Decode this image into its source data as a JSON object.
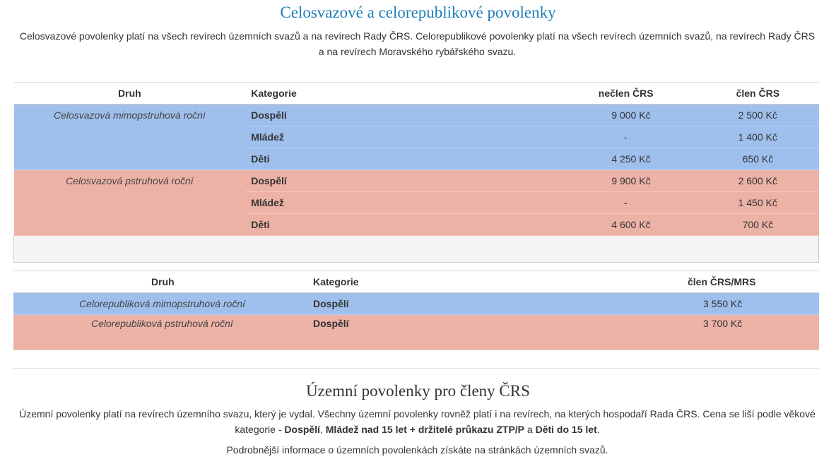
{
  "section1": {
    "title": "Celosvazové a celorepublikové povolenky",
    "intro_line1": "Celosvazové povolenky platí na všech revírech územních svazů a na revírech Rady ČRS. Celorepublikové povolenky platí na všech revírech územních svazů, na revírech Rady ČRS",
    "intro_line2": "a na revírech Moravského rybářského svazu."
  },
  "table1": {
    "headers": [
      "Druh",
      "Kategorie",
      "nečlen ČRS",
      "člen ČRS"
    ],
    "groups": [
      {
        "druh": "Celosvazová mimopstruhová roční",
        "color": "#9fc0ed",
        "rows": [
          {
            "kategorie": "Dospělí",
            "neclen": "9 000 Kč",
            "clen": "2 500 Kč"
          },
          {
            "kategorie": "Mládež",
            "neclen": "-",
            "clen": "1 400 Kč"
          },
          {
            "kategorie": "Děti",
            "neclen": "4 250 Kč",
            "clen": "650 Kč"
          }
        ]
      },
      {
        "druh": "Celosvazová pstruhová roční",
        "color": "#edb2a6",
        "rows": [
          {
            "kategorie": "Dospělí",
            "neclen": "9 900 Kč",
            "clen": "2 600 Kč"
          },
          {
            "kategorie": "Mládež",
            "neclen": "-",
            "clen": "1 450 Kč"
          },
          {
            "kategorie": "Děti",
            "neclen": "4 600 Kč",
            "clen": "700 Kč"
          }
        ]
      }
    ]
  },
  "table2": {
    "headers": [
      "Druh",
      "Kategorie",
      "člen ČRS/MRS"
    ],
    "rows": [
      {
        "druh": "Celorepubliková mimopstruhová roční",
        "kategorie": "Dospělí",
        "cena": "3 550 Kč"
      },
      {
        "druh": "Celorepubliková pstruhová roční",
        "kategorie": "Dospělí",
        "cena": "3 700 Kč"
      }
    ]
  },
  "section2": {
    "title": "Územní povolenky pro členy ČRS",
    "text_a": "Územní povolenky platí na revírech územního svazu, který je vydal. Všechny územní povolenky rovněž platí i na revírech, na kterých hospodaří Rada ČRS. Cena se liší podle věkové",
    "text_b": "kategorie - ",
    "bold1": "Dospělí",
    "sep1": ", ",
    "bold2": "Mládež nad 15 let + držitelé průkazu ZTP/P",
    "sep2": " a ",
    "bold3": "Děti do 15 let",
    "end": ".",
    "more": "Podrobnější informace o územních povolenkách získáte na stránkách územních svazů."
  }
}
